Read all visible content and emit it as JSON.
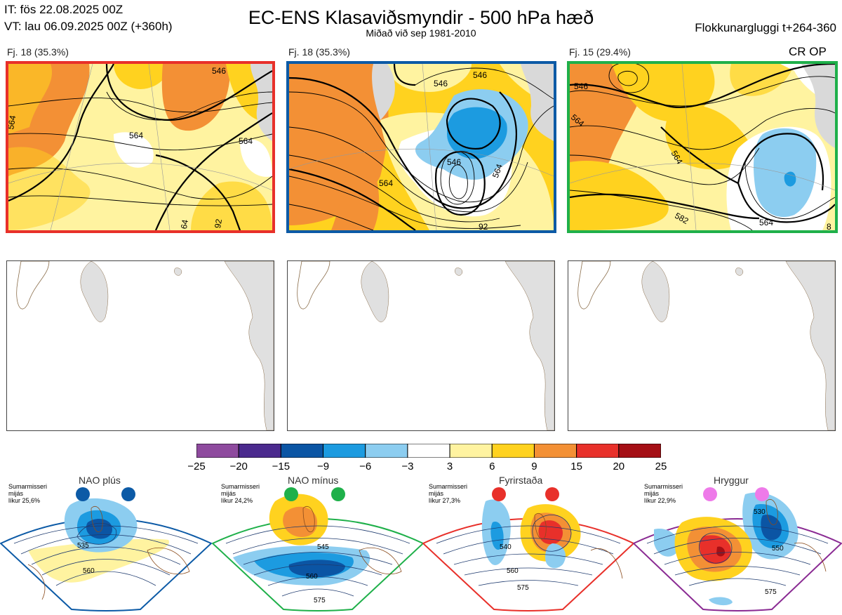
{
  "header": {
    "it_line": "IT: fös 22.08.2025 00Z",
    "vt_line": "VT: lau 06.09.2025 00Z  (+360h)",
    "title": "EC-ENS Klasaviðsmyndir - 500 hPa hæð",
    "subtitle": "Miðað við sep 1981-2010",
    "window": "Flokkunargluggi t+264-360",
    "crop": "CR OP"
  },
  "clusters": [
    {
      "label": "Fj. 18 (35.3%)",
      "border": "#e8302a",
      "contours": [
        "546",
        "564",
        "564",
        "64",
        "92",
        "564"
      ]
    },
    {
      "label": "Fj. 18 (35.3%)",
      "border": "#0c5aa6",
      "contours": [
        "546",
        "546",
        "546",
        "564",
        "564",
        "92"
      ]
    },
    {
      "label": "Fj. 15 (29.4%)",
      "border": "#1fb04a",
      "contours": [
        "546",
        "564",
        "564",
        "582",
        "564",
        "8"
      ]
    }
  ],
  "colorbar": {
    "ticks": [
      "−25",
      "−20",
      "−15",
      "−9",
      "−6",
      "−3",
      "3",
      "6",
      "9",
      "15",
      "20",
      "25"
    ],
    "colors": [
      "#8e4a9e",
      "#4b2a8e",
      "#0b55a4",
      "#1c9be0",
      "#8ccdf0",
      "#ffffff",
      "#fff3a0",
      "#ffd21f",
      "#f39035",
      "#e8302a",
      "#a50f15"
    ]
  },
  "regimes": [
    {
      "title": "NAO plús",
      "meta": [
        "Sumarmisseri",
        "mijás",
        "líkur 25,6%"
      ],
      "border": "#0c5aa6",
      "dot": "#0c5aa6",
      "contours": [
        "535",
        "560"
      ]
    },
    {
      "title": "NAO mínus",
      "meta": [
        "Sumarmisseri",
        "mijás",
        "líkur 24,2%"
      ],
      "border": "#1fb04a",
      "dot": "#1fb04a",
      "contours": [
        "545",
        "560",
        "575"
      ]
    },
    {
      "title": "Fyrirstaða",
      "meta": [
        "Sumarmisseri",
        "mijás",
        "líkur 27,3%"
      ],
      "border": "#e8302a",
      "dot": "#e8302a",
      "contours": [
        "540",
        "560",
        "575"
      ]
    },
    {
      "title": "Hryggur",
      "meta": [
        "Sumarmisseri",
        "mijás",
        "líkur 22,9%"
      ],
      "border": "#8a2b93",
      "dot": "#ee7ae9",
      "contours": [
        "530",
        "550",
        "575"
      ]
    }
  ]
}
